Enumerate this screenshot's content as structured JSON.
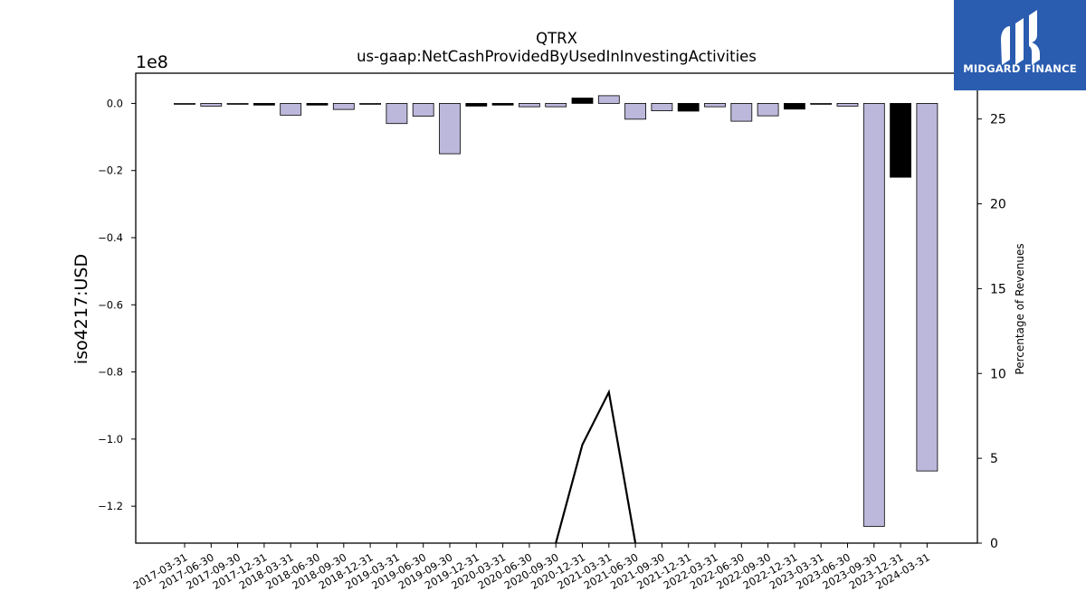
{
  "chart_data": {
    "type": "bar",
    "title": "QTRX",
    "subtitle": "us-gaap:NetCashProvidedByUsedInInvestingActivities",
    "ylabel": "iso4217:USD",
    "y_offset_label": "1e8",
    "y2label": "Percentage of Revenues",
    "ylim": [
      -131000000,
      9000000
    ],
    "y2lim": [
      0,
      27.7
    ],
    "yticks": [
      "0.0",
      "−0.2",
      "−0.4",
      "−0.6",
      "−0.8",
      "−1.0",
      "−1.2"
    ],
    "y2ticks": [
      "0",
      "5",
      "10",
      "15",
      "20",
      "25"
    ],
    "categories": [
      "2017-03-31",
      "2017-06-30",
      "2017-09-30",
      "2017-12-31",
      "2018-03-31",
      "2018-06-30",
      "2018-09-30",
      "2018-12-31",
      "2019-03-31",
      "2019-06-30",
      "2019-09-30",
      "2019-12-31",
      "2020-03-31",
      "2020-06-30",
      "2020-09-30",
      "2020-12-31",
      "2021-03-31",
      "2021-06-30",
      "2021-09-30",
      "2021-12-31",
      "2022-03-31",
      "2022-06-30",
      "2022-09-30",
      "2022-12-31",
      "2023-03-31",
      "2023-06-30",
      "2023-09-30",
      "2023-12-31",
      "2024-03-31"
    ],
    "series": [
      {
        "values": [
          -200000,
          -800000,
          -200000,
          -500000,
          -3500000,
          -500000,
          -1800000,
          -200000,
          -6000000,
          -3800000,
          -15000000,
          -800000,
          -500000,
          -1000000,
          -1000000,
          1600000,
          2300000,
          -4700000,
          -2200000,
          -2300000,
          -1000000,
          -5300000,
          -3700000,
          -1700000,
          -200000,
          -800000,
          -126000000,
          -22000000,
          -109500000
        ],
        "bar_colors": [
          "#bcb8db",
          "#bcb8db",
          "#bcb8db",
          "#000000",
          "#bcb8db",
          "#000000",
          "#bcb8db",
          "#bcb8db",
          "#bcb8db",
          "#bcb8db",
          "#bcb8db",
          "#000000",
          "#000000",
          "#bcb8db",
          "#bcb8db",
          "#000000",
          "#bcb8db",
          "#bcb8db",
          "#bcb8db",
          "#000000",
          "#bcb8db",
          "#bcb8db",
          "#bcb8db",
          "#000000",
          "#bcb8db",
          "#bcb8db",
          "#bcb8db",
          "#000000",
          "#bcb8db"
        ]
      },
      {
        "axis": "right",
        "kind": "line",
        "values": [
          null,
          null,
          null,
          null,
          null,
          null,
          null,
          null,
          null,
          null,
          null,
          null,
          null,
          null,
          0,
          5.8,
          8.9,
          0,
          null,
          null,
          null,
          null,
          null,
          null,
          null,
          null,
          null,
          null,
          null
        ],
        "color": "#000000"
      }
    ],
    "grid": false
  },
  "logo": {
    "text": "MIDGARD FINANCE",
    "bg_color": "#2a5cb0"
  }
}
